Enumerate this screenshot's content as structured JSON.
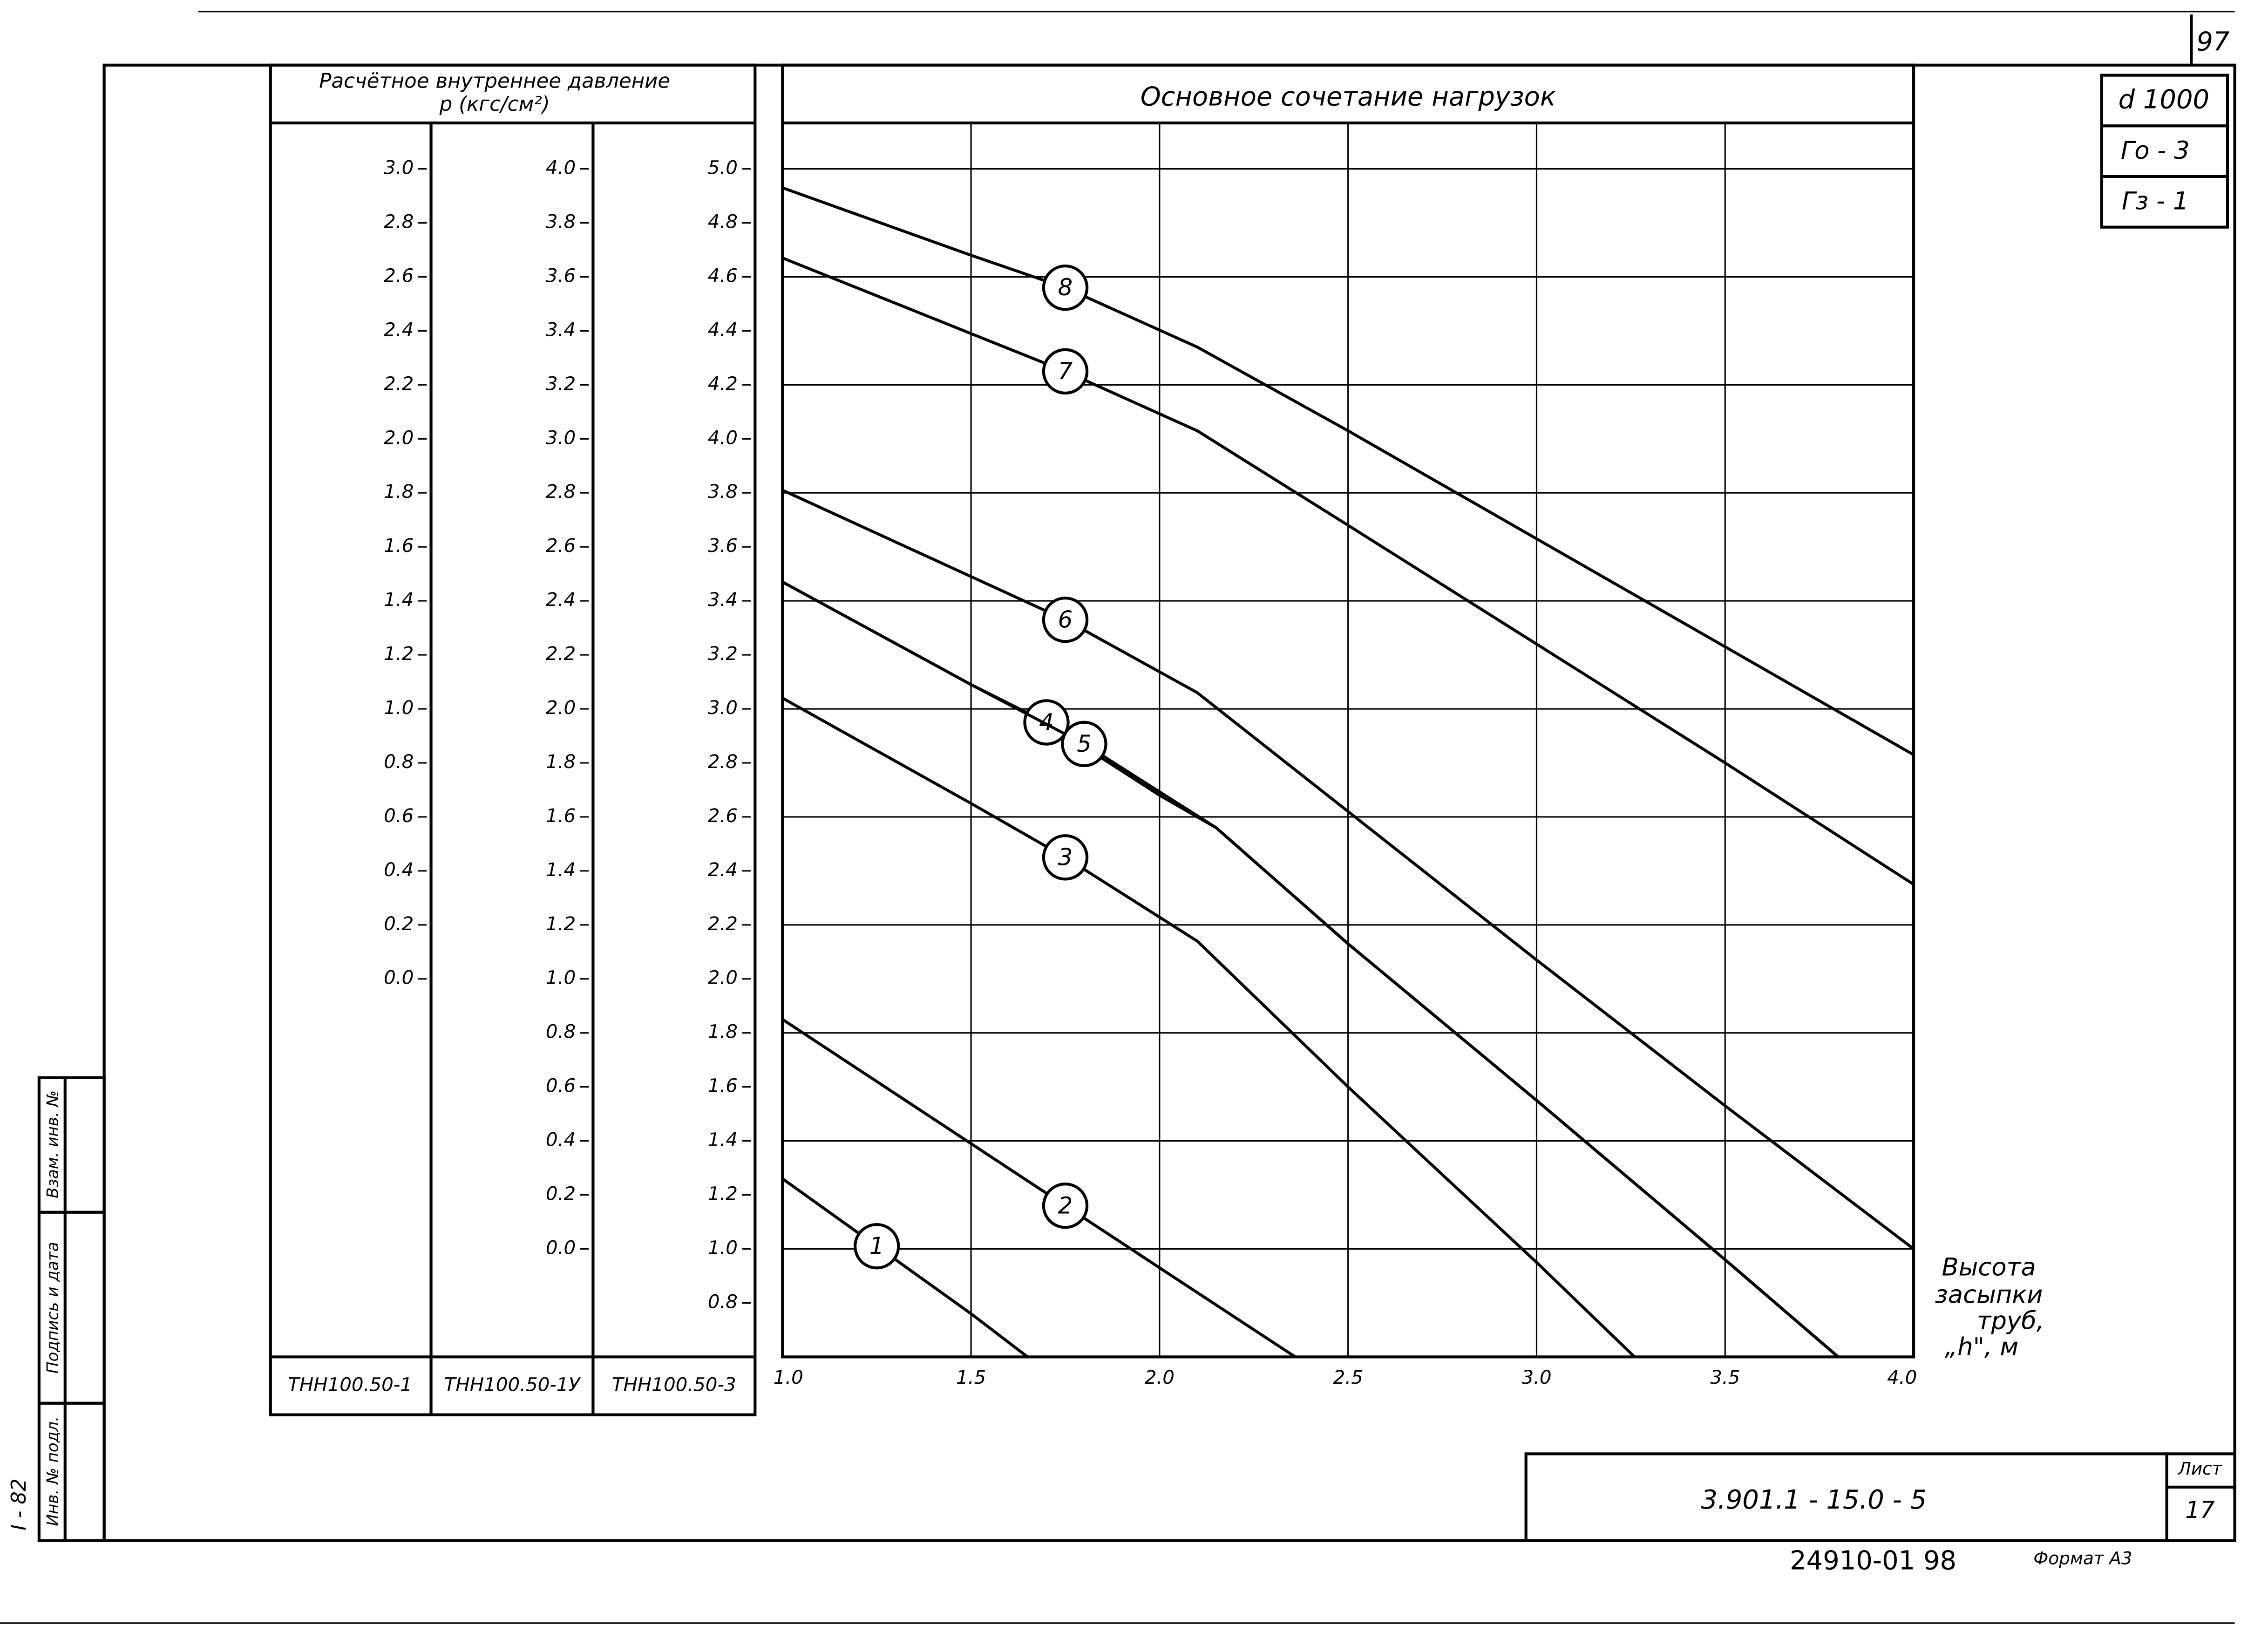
{
  "page_number": "97",
  "sheet_code": "d 1000",
  "param_1": "Го - 3",
  "param_2": "Гз - 1",
  "document_code": "3.901.1 - 15.0 - 5",
  "sheet_label": "Лист",
  "sheet_number": "17",
  "order_number": "24910-01  98",
  "format": "Формат А3",
  "side_number": "I - 82",
  "side_fields": [
    "Инв. № подл.",
    "Подпись и дата",
    "Взам. инв. №"
  ],
  "chart_data": {
    "type": "line",
    "title": "Основное   сочетание   нагрузок",
    "y_label": "Расчётное внутреннее давление",
    "y_unit": "р (кгс/см²)",
    "x_label": [
      "Высота",
      "засыпки",
      "труб,",
      "„h\", м"
    ],
    "xlim": [
      1.0,
      4.0
    ],
    "xticks": [
      {
        "value": 1.0,
        "label": "1.0"
      },
      1.5,
      {
        "value": 2.0,
        "label": "2.0"
      },
      2.5,
      {
        "value": 3.0,
        "label": "3.0"
      },
      3.5,
      {
        "value": 4.0,
        "label": "4.0"
      }
    ],
    "ylim": [
      0.6,
      5.17
    ],
    "y_scale_label": "ТНН100.50-3",
    "yticks": [
      {
        "value": 5.0,
        "label": "5.0"
      },
      4.8,
      4.6,
      4.4,
      4.2,
      {
        "value": 4.0,
        "label": "4.0"
      },
      3.8,
      3.6,
      3.4,
      3.2,
      {
        "value": 3.0,
        "label": "3.0"
      },
      2.8,
      2.6,
      2.4,
      2.2,
      {
        "value": 2.0,
        "label": "2.0"
      },
      1.8,
      1.6,
      1.4,
      1.2,
      {
        "value": 1.0,
        "label": "1.0"
      },
      0.8
    ],
    "y_extra_scales": [
      {
        "label": "ТНН100.50-1",
        "ylim": [
          -1.4,
          3.17
        ],
        "yticks": [
          {
            "value": 3.0,
            "label": "3.0"
          },
          2.8,
          2.6,
          2.4,
          2.2,
          {
            "value": 2.0,
            "label": "2.0"
          },
          1.8,
          1.6,
          1.4,
          1.2,
          {
            "value": 1.0,
            "label": "1.0"
          },
          0.8,
          0.6,
          0.4,
          0.2,
          {
            "value": 0,
            "label": "0.0"
          }
        ]
      },
      {
        "label": "ТНН100.50-1У",
        "ylim": [
          -0.4,
          4.17
        ],
        "yticks": [
          {
            "value": 4.0,
            "label": "4.0"
          },
          3.8,
          3.6,
          3.4,
          3.2,
          {
            "value": 3.0,
            "label": "3.0"
          },
          2.8,
          2.6,
          2.4,
          2.2,
          {
            "value": 2.0,
            "label": "2.0"
          },
          1.8,
          1.6,
          1.4,
          1.2,
          {
            "value": 1.0,
            "label": "1.0"
          },
          0.8,
          0.6,
          0.4,
          0.2,
          {
            "value": 0,
            "label": "0.0"
          }
        ]
      }
    ],
    "grid": true,
    "series": [
      {
        "name": "1",
        "color": "#000000",
        "x": [
          1.0,
          1.25,
          1.5,
          1.65
        ],
        "values": [
          1.26,
          1.01,
          0.76,
          0.6
        ]
      },
      {
        "name": "2",
        "color": "#000000",
        "x": [
          1.0,
          1.5,
          1.75,
          2.0,
          2.36
        ],
        "values": [
          1.85,
          1.39,
          1.16,
          0.93,
          0.6
        ]
      },
      {
        "name": "3",
        "color": "#000000",
        "x": [
          1.0,
          1.5,
          1.75,
          2.1,
          2.5,
          3.0,
          3.26
        ],
        "values": [
          3.04,
          2.65,
          2.45,
          2.14,
          1.6,
          0.95,
          0.6
        ]
      },
      {
        "name": "4",
        "color": "#000000",
        "x": [
          1.0,
          1.5,
          1.7,
          2.0,
          2.15,
          2.5,
          3.0,
          3.5,
          3.8
        ],
        "values": [
          3.47,
          3.09,
          2.95,
          2.68,
          2.56,
          2.13,
          1.55,
          0.96,
          0.6
        ]
      },
      {
        "name": "5",
        "color": "#000000",
        "x": [
          1.0,
          1.5,
          1.8,
          2.15,
          2.5,
          3.0,
          3.5,
          3.8
        ],
        "values": [
          3.47,
          3.09,
          2.87,
          2.56,
          2.13,
          1.55,
          0.96,
          0.6
        ]
      },
      {
        "name": "6",
        "color": "#000000",
        "x": [
          1.0,
          1.5,
          1.75,
          2.1,
          2.5,
          3.0,
          3.5,
          4.0
        ],
        "values": [
          3.81,
          3.49,
          3.33,
          3.06,
          2.62,
          2.07,
          1.53,
          1.0
        ]
      },
      {
        "name": "7",
        "color": "#000000",
        "x": [
          1.0,
          1.5,
          1.75,
          2.1,
          2.5,
          3.0,
          3.5,
          4.0
        ],
        "values": [
          4.67,
          4.39,
          4.25,
          4.03,
          3.68,
          3.24,
          2.8,
          2.35
        ]
      },
      {
        "name": "8",
        "color": "#000000",
        "x": [
          1.0,
          1.5,
          1.75,
          2.1,
          2.5,
          3.0,
          3.5,
          4.0
        ],
        "values": [
          4.93,
          4.68,
          4.56,
          4.34,
          4.03,
          3.63,
          3.23,
          2.83
        ]
      }
    ]
  }
}
